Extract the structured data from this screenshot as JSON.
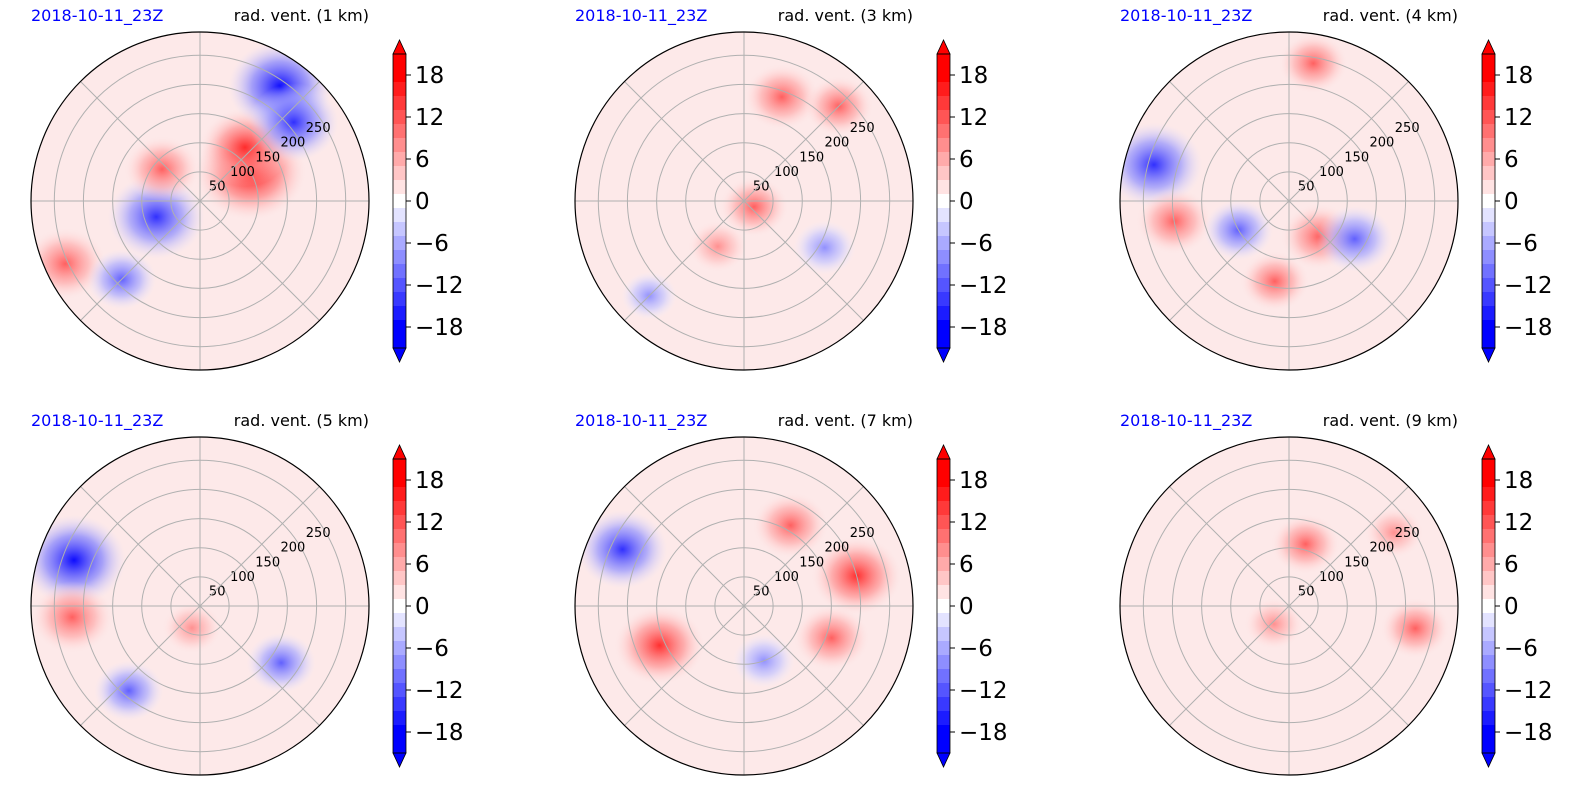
{
  "colors": {
    "positive_max": "#ff0000",
    "negative_max": "#0000ff",
    "neutral": "#ffffff",
    "date_text": "#0000ff",
    "grid": "#b0b0b0"
  },
  "chart_data": [
    {
      "type": "polar-contour",
      "date": "2018-10-11_23Z",
      "title": "rad. vent. (1 km)",
      "range_rings": [
        "50",
        "100",
        "150",
        "200",
        "250"
      ],
      "colorbar": {
        "ticks": [
          "18",
          "12",
          "6",
          "0",
          "−6",
          "−12",
          "−18"
        ],
        "values": [
          18,
          12,
          6,
          0,
          -6,
          -12,
          -18
        ],
        "extend": "both"
      },
      "features": [
        {
          "sign": "positive",
          "strength": 1.0,
          "range": 100,
          "azimuth": 60
        },
        {
          "sign": "positive",
          "strength": 0.7,
          "range": 120,
          "azimuth": 40
        },
        {
          "sign": "negative",
          "strength": 0.9,
          "range": 240,
          "azimuth": 35
        },
        {
          "sign": "negative",
          "strength": 0.7,
          "range": 210,
          "azimuth": 50
        },
        {
          "sign": "negative",
          "strength": 0.8,
          "range": 80,
          "azimuth": 250
        },
        {
          "sign": "positive",
          "strength": 0.6,
          "range": 255,
          "azimuth": 245
        },
        {
          "sign": "negative",
          "strength": 0.4,
          "range": 190,
          "azimuth": 225
        },
        {
          "sign": "positive",
          "strength": 0.5,
          "range": 85,
          "azimuth": 310
        }
      ]
    },
    {
      "type": "polar-contour",
      "date": "2018-10-11_23Z",
      "title": "rad. vent. (3 km)",
      "range_rings": [
        "50",
        "100",
        "150",
        "200",
        "250"
      ],
      "colorbar": {
        "ticks": [
          "18",
          "12",
          "6",
          "0",
          "−6",
          "−12",
          "−18"
        ],
        "values": [
          18,
          12,
          6,
          0,
          -6,
          -12,
          -18
        ],
        "extend": "both"
      },
      "features": [
        {
          "sign": "positive",
          "strength": 0.5,
          "range": 190,
          "azimuth": 20
        },
        {
          "sign": "positive",
          "strength": 0.4,
          "range": 230,
          "azimuth": 45
        },
        {
          "sign": "positive",
          "strength": 0.4,
          "range": 20,
          "azimuth": 120
        },
        {
          "sign": "positive",
          "strength": 0.3,
          "range": 90,
          "azimuth": 210
        },
        {
          "sign": "negative",
          "strength": 0.3,
          "range": 160,
          "azimuth": 120
        },
        {
          "sign": "negative",
          "strength": 0.2,
          "range": 230,
          "azimuth": 225
        }
      ]
    },
    {
      "type": "polar-contour",
      "date": "2018-10-11_23Z",
      "title": "rad. vent. (4 km)",
      "range_rings": [
        "50",
        "100",
        "150",
        "200",
        "250"
      ],
      "colorbar": {
        "ticks": [
          "18",
          "12",
          "6",
          "0",
          "−6",
          "−12",
          "−18"
        ],
        "values": [
          18,
          12,
          6,
          0,
          -6,
          -12,
          -18
        ],
        "extend": "both"
      },
      "features": [
        {
          "sign": "negative",
          "strength": 0.8,
          "range": 240,
          "azimuth": 285
        },
        {
          "sign": "positive",
          "strength": 0.5,
          "range": 200,
          "azimuth": 260
        },
        {
          "sign": "positive",
          "strength": 0.5,
          "range": 80,
          "azimuth": 140
        },
        {
          "sign": "positive",
          "strength": 0.4,
          "range": 140,
          "azimuth": 190
        },
        {
          "sign": "positive",
          "strength": 0.4,
          "range": 240,
          "azimuth": 10
        },
        {
          "sign": "negative",
          "strength": 0.4,
          "range": 100,
          "azimuth": 240
        },
        {
          "sign": "negative",
          "strength": 0.5,
          "range": 130,
          "azimuth": 120
        }
      ]
    },
    {
      "type": "polar-contour",
      "date": "2018-10-11_23Z",
      "title": "rad. vent. (5 km)",
      "range_rings": [
        "50",
        "100",
        "150",
        "200",
        "250"
      ],
      "colorbar": {
        "ticks": [
          "18",
          "12",
          "6",
          "0",
          "−6",
          "−12",
          "−18"
        ],
        "values": [
          18,
          12,
          6,
          0,
          -6,
          -12,
          -18
        ],
        "extend": "both"
      },
      "features": [
        {
          "sign": "negative",
          "strength": 0.9,
          "range": 230,
          "azimuth": 290
        },
        {
          "sign": "positive",
          "strength": 0.6,
          "range": 220,
          "azimuth": 265
        },
        {
          "sign": "negative",
          "strength": 0.4,
          "range": 190,
          "azimuth": 220
        },
        {
          "sign": "negative",
          "strength": 0.4,
          "range": 170,
          "azimuth": 125
        },
        {
          "sign": "positive",
          "strength": 0.3,
          "range": 40,
          "azimuth": 200
        }
      ]
    },
    {
      "type": "polar-contour",
      "date": "2018-10-11_23Z",
      "title": "rad. vent. (7 km)",
      "range_rings": [
        "50",
        "100",
        "150",
        "200",
        "250"
      ],
      "colorbar": {
        "ticks": [
          "18",
          "12",
          "6",
          "0",
          "−6",
          "−12",
          "−18"
        ],
        "values": [
          18,
          12,
          6,
          0,
          -6,
          -12,
          -18
        ],
        "extend": "both"
      },
      "features": [
        {
          "sign": "positive",
          "strength": 0.7,
          "range": 200,
          "azimuth": 75
        },
        {
          "sign": "positive",
          "strength": 0.5,
          "range": 160,
          "azimuth": 110
        },
        {
          "sign": "positive",
          "strength": 0.5,
          "range": 160,
          "azimuth": 30
        },
        {
          "sign": "negative",
          "strength": 0.7,
          "range": 230,
          "azimuth": 295
        },
        {
          "sign": "positive",
          "strength": 0.7,
          "range": 160,
          "azimuth": 245
        },
        {
          "sign": "negative",
          "strength": 0.3,
          "range": 100,
          "azimuth": 160
        }
      ]
    },
    {
      "type": "polar-contour",
      "date": "2018-10-11_23Z",
      "title": "rad. vent. (9 km)",
      "range_rings": [
        "50",
        "100",
        "150",
        "200",
        "250"
      ],
      "colorbar": {
        "ticks": [
          "18",
          "12",
          "6",
          "0",
          "−6",
          "−12",
          "−18"
        ],
        "values": [
          18,
          12,
          6,
          0,
          -6,
          -12,
          -18
        ],
        "extend": "both"
      },
      "features": [
        {
          "sign": "positive",
          "strength": 0.4,
          "range": 110,
          "azimuth": 15
        },
        {
          "sign": "positive",
          "strength": 0.3,
          "range": 220,
          "azimuth": 55
        },
        {
          "sign": "positive",
          "strength": 0.4,
          "range": 220,
          "azimuth": 100
        },
        {
          "sign": "positive",
          "strength": 0.3,
          "range": 40,
          "azimuth": 220
        }
      ]
    }
  ]
}
